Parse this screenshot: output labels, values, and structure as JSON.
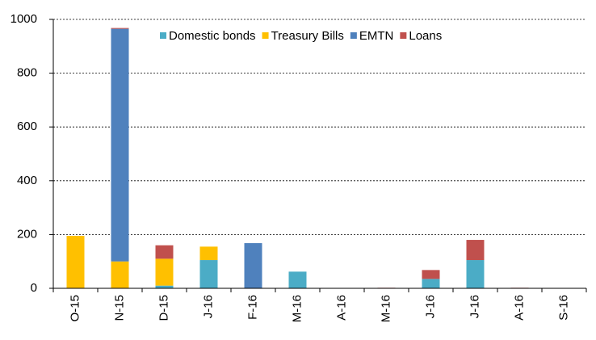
{
  "chart_data": {
    "type": "stacked_bar",
    "categories": [
      "O-15",
      "N-15",
      "D-15",
      "J-16",
      "F-16",
      "M-16",
      "A-16",
      "M-16",
      "J-16",
      "J-16",
      "A-16",
      "S-16"
    ],
    "series": [
      {
        "name": "Domestic bonds",
        "color": "#4bacc6",
        "values": [
          0,
          0,
          10,
          105,
          0,
          62,
          0,
          0,
          35,
          105,
          0,
          0
        ]
      },
      {
        "name": "Treasury Bills",
        "color": "#ffc000",
        "values": [
          195,
          100,
          100,
          50,
          0,
          0,
          0,
          0,
          0,
          0,
          0,
          0
        ]
      },
      {
        "name": "EMTN",
        "color": "#4f81bd",
        "values": [
          0,
          865,
          0,
          0,
          168,
          0,
          0,
          0,
          0,
          0,
          0,
          0
        ]
      },
      {
        "name": "Loans",
        "color": "#c0504d",
        "values": [
          0,
          3,
          50,
          0,
          0,
          0,
          0,
          2,
          33,
          75,
          2,
          0
        ]
      }
    ],
    "ylim": [
      0,
      1000
    ],
    "yticks": [
      0,
      200,
      400,
      600,
      800,
      1000
    ],
    "grid": true,
    "legend": "top"
  }
}
